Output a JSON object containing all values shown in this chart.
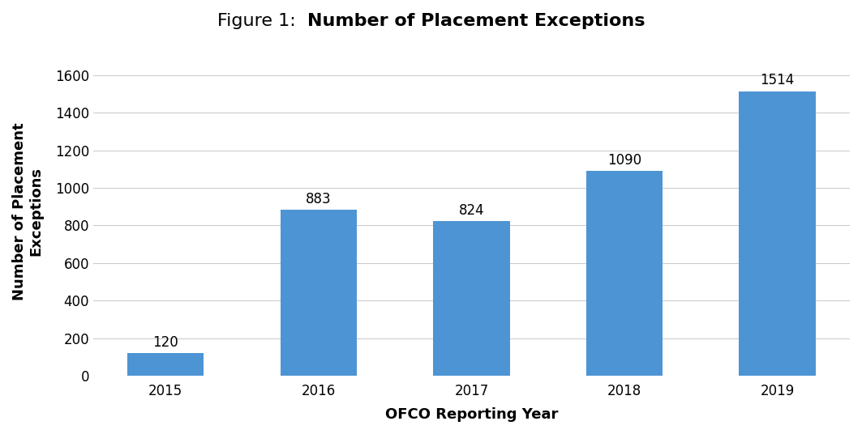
{
  "categories": [
    "2015",
    "2016",
    "2017",
    "2018",
    "2019"
  ],
  "values": [
    120,
    883,
    824,
    1090,
    1514
  ],
  "bar_color": "#4d94d4",
  "title_prefix": "Figure 1:  ",
  "title_bold": "Number of Placement Exceptions",
  "xlabel": "OFCO Reporting Year",
  "ylabel": "Number of Placement\nExceptions",
  "ylim": [
    0,
    1750
  ],
  "yticks": [
    0,
    200,
    400,
    600,
    800,
    1000,
    1200,
    1400,
    1600
  ],
  "background_color": "#ffffff",
  "grid_color": "#cccccc",
  "bar_width": 0.5,
  "title_fontsize": 16,
  "axis_label_fontsize": 13,
  "tick_fontsize": 12,
  "annotation_fontsize": 12
}
